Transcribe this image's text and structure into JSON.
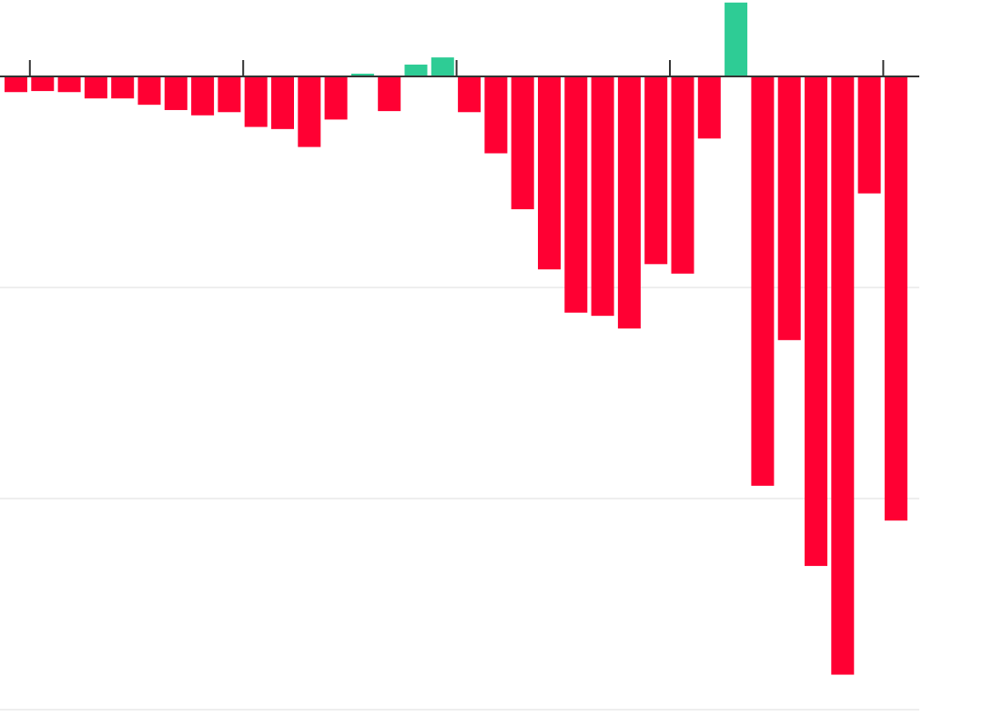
{
  "chart_data": {
    "type": "bar",
    "title": "",
    "xlabel": "",
    "ylabel": "",
    "ylim": [
      -3,
      0.35
    ],
    "yticks": [
      0,
      -1,
      -2,
      -3
    ],
    "grid": true,
    "major_tick_every_n_bars": 8,
    "colors": {
      "positive": "#2ecc95",
      "negative": "#ff0033",
      "axis": "#333333",
      "grid": "#eeeeee"
    },
    "values": [
      -0.07,
      -0.065,
      -0.07,
      -0.1,
      -0.1,
      -0.13,
      -0.155,
      -0.18,
      -0.165,
      -0.235,
      -0.245,
      -0.33,
      -0.2,
      0.013,
      -0.16,
      0.056,
      0.09,
      -0.165,
      -0.36,
      -0.625,
      -0.91,
      -1.115,
      -1.13,
      -1.19,
      -0.885,
      -0.93,
      -0.29,
      0.35,
      -1.935,
      -1.245,
      -2.315,
      -2.83,
      -0.55,
      -2.1
    ]
  }
}
